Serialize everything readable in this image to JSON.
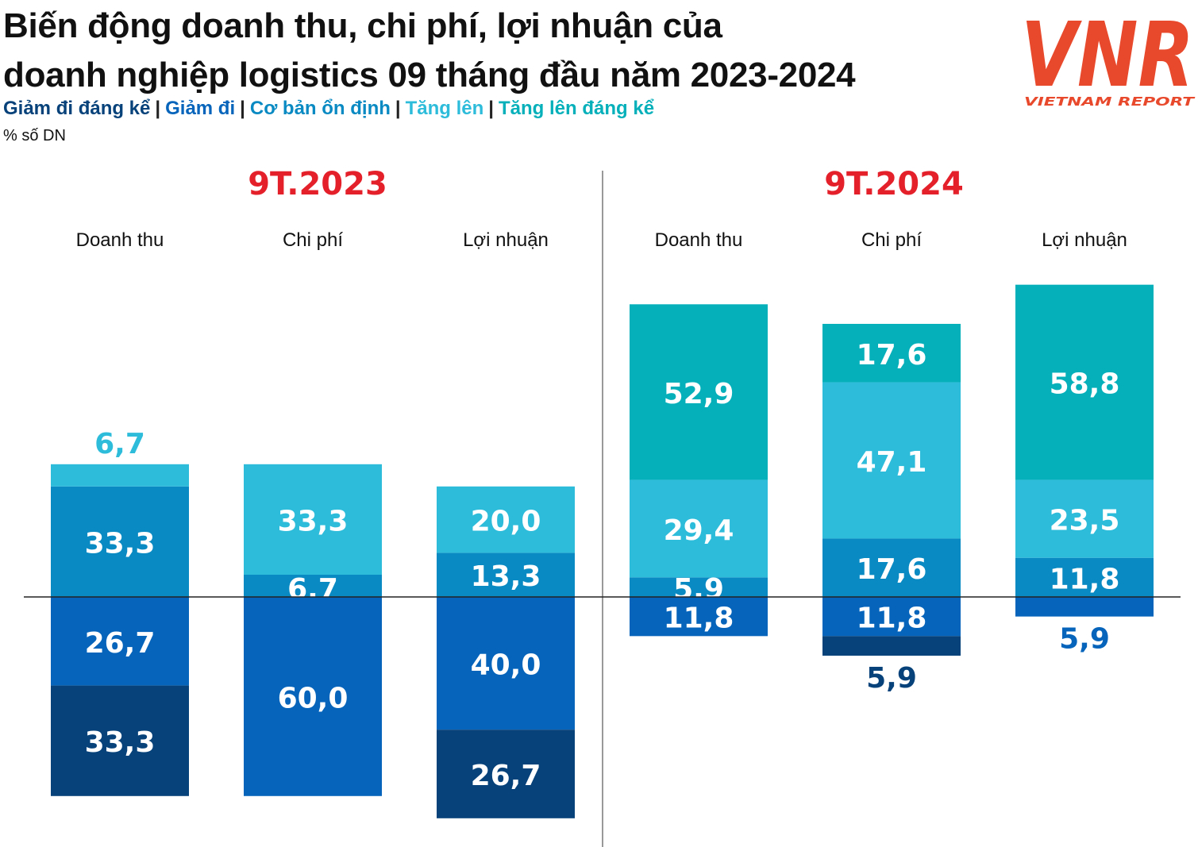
{
  "title_line1": "Biến động doanh thu, chi phí, lợi nhuận của",
  "title_line2": "doanh nghiệp logistics 09 tháng đầu năm 2023-2024",
  "logo": {
    "text": "VNR",
    "subtitle": "VIETNAM REPORT"
  },
  "colors": {
    "giam_dang_ke": "#07427a",
    "giam": "#0665bb",
    "on_dinh": "#0a8ac2",
    "tang": "#2ebcdb",
    "tang_dang_ke": "#05b0bb",
    "period_title": "#e4202a",
    "logo": "#e8492c"
  },
  "chart_data": {
    "type": "bar",
    "subtype": "stacked-diverging",
    "unit_label": "% số DN",
    "legend": [
      {
        "key": "giam_dang_ke",
        "label": "Giảm đi đáng kể"
      },
      {
        "key": "giam",
        "label": "Giảm đi"
      },
      {
        "key": "on_dinh",
        "label": "Cơ bản ổn định"
      },
      {
        "key": "tang",
        "label": "Tăng lên"
      },
      {
        "key": "tang_dang_ke",
        "label": "Tăng lên đáng kể"
      }
    ],
    "periods": [
      {
        "title": "9T.2023",
        "groups": [
          {
            "name": "Doanh thu",
            "values": {
              "giam_dang_ke": 33.3,
              "giam": 26.7,
              "on_dinh": 33.3,
              "tang": 6.7,
              "tang_dang_ke": 0
            },
            "labels": {
              "giam_dang_ke": "33,3",
              "giam": "26,7",
              "on_dinh": "33,3",
              "tang": "6,7"
            }
          },
          {
            "name": "Chi phí",
            "values": {
              "giam_dang_ke": 0,
              "giam": 60.0,
              "on_dinh": 6.7,
              "tang": 33.3,
              "tang_dang_ke": 0
            },
            "labels": {
              "giam": "60,0",
              "on_dinh": "6,7",
              "tang": "33,3"
            }
          },
          {
            "name": "Lợi nhuận",
            "values": {
              "giam_dang_ke": 26.7,
              "giam": 40.0,
              "on_dinh": 13.3,
              "tang": 20.0,
              "tang_dang_ke": 0
            },
            "labels": {
              "giam_dang_ke": "26,7",
              "giam": "40,0",
              "on_dinh": "13,3",
              "tang": "20,0"
            }
          }
        ]
      },
      {
        "title": "9T.2024",
        "groups": [
          {
            "name": "Doanh thu",
            "values": {
              "giam_dang_ke": 0,
              "giam": 11.8,
              "on_dinh": 5.9,
              "tang": 29.4,
              "tang_dang_ke": 52.9
            },
            "labels": {
              "giam": "11,8",
              "on_dinh": "5,9",
              "tang": "29,4",
              "tang_dang_ke": "52,9"
            }
          },
          {
            "name": "Chi phí",
            "values": {
              "giam_dang_ke": 5.9,
              "giam": 11.8,
              "on_dinh": 17.6,
              "tang": 47.1,
              "tang_dang_ke": 17.6
            },
            "labels": {
              "giam_dang_ke": "5,9",
              "giam": "11,8",
              "on_dinh": "17,6",
              "tang": "47,1",
              "tang_dang_ke": "17,6"
            }
          },
          {
            "name": "Lợi nhuận",
            "values": {
              "giam_dang_ke": 0,
              "giam": 5.9,
              "on_dinh": 11.8,
              "tang": 23.5,
              "tang_dang_ke": 58.8
            },
            "labels": {
              "giam": "5,9",
              "on_dinh": "11,8",
              "tang": "23,5",
              "tang_dang_ke": "58,8"
            }
          }
        ]
      }
    ]
  }
}
